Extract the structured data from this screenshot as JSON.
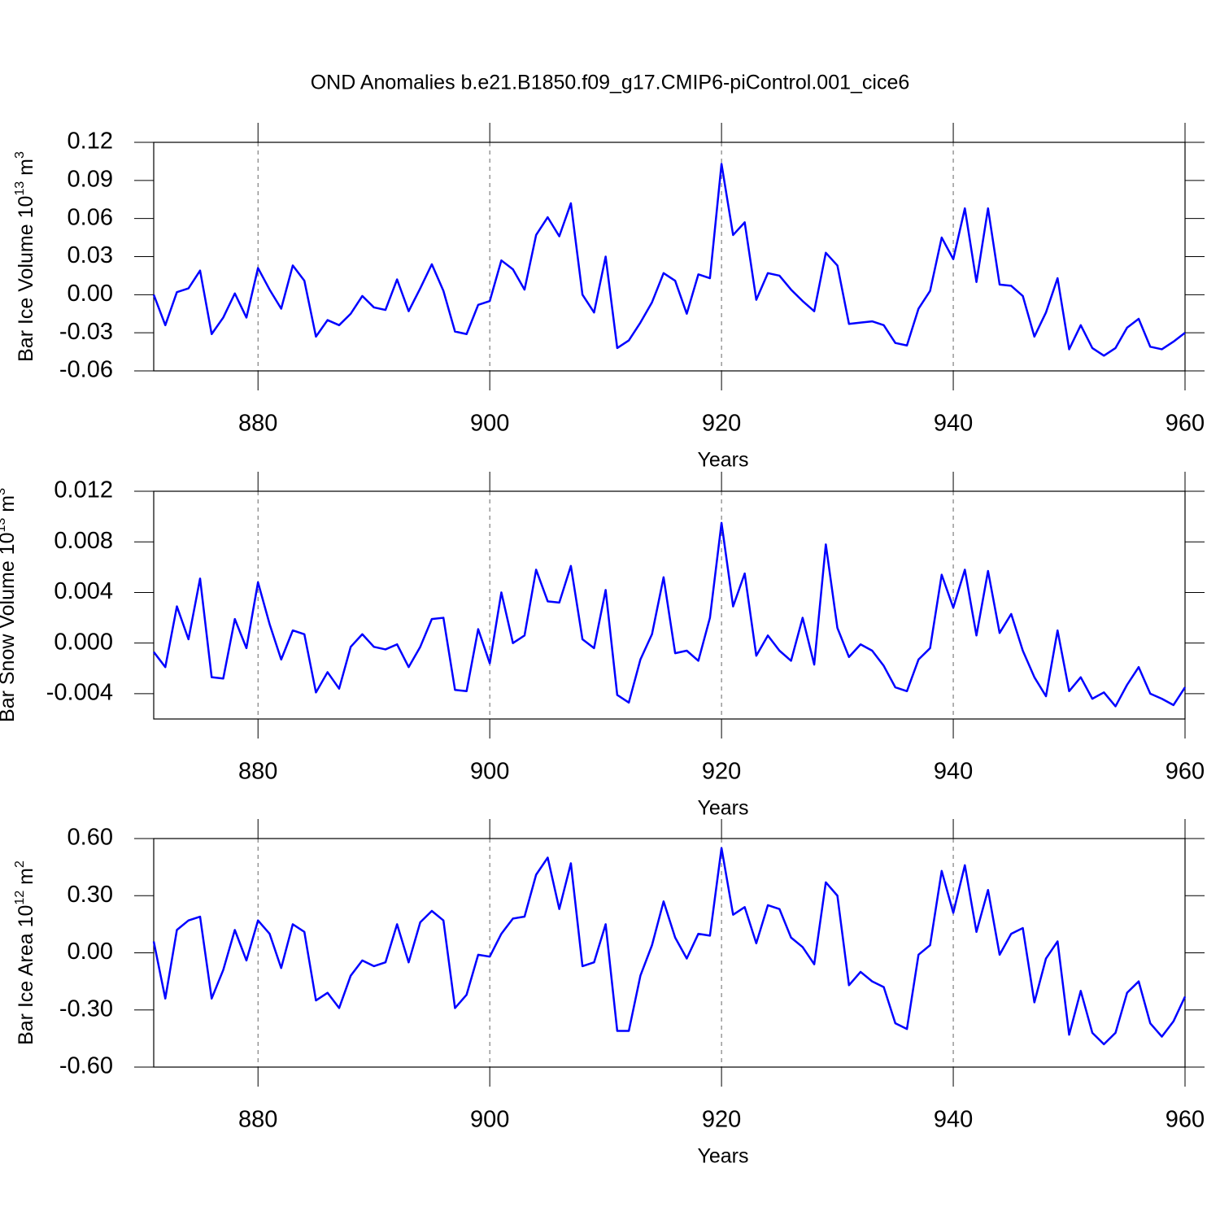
{
  "title": "OND Anomalies b.e21.B1850.f09_g17.CMIP6-piControl.001_cice6",
  "chart_data": [
    {
      "type": "line",
      "color": "#0000ff",
      "grid": "x",
      "xlabel": "Years",
      "ylabel": {
        "base": "Bar Ice Volume 10",
        "power": "13",
        "unit": " m",
        "unit_power": "3"
      },
      "xlim": [
        871,
        960
      ],
      "xticks": [
        880,
        900,
        920,
        940,
        960
      ],
      "ylim": [
        -0.06,
        0.12
      ],
      "yticks": [
        -0.06,
        -0.03,
        {
          "value": 0,
          "label": "0.00"
        },
        0.03,
        0.06,
        0.09,
        0.12
      ],
      "x": [
        871,
        872,
        873,
        874,
        875,
        876,
        877,
        878,
        879,
        880,
        881,
        882,
        883,
        884,
        885,
        886,
        887,
        888,
        889,
        890,
        891,
        892,
        893,
        894,
        895,
        896,
        897,
        898,
        899,
        900,
        901,
        902,
        903,
        904,
        905,
        906,
        907,
        908,
        909,
        910,
        911,
        912,
        913,
        914,
        915,
        916,
        917,
        918,
        919,
        920,
        921,
        922,
        923,
        924,
        925,
        926,
        927,
        928,
        929,
        930,
        931,
        932,
        933,
        934,
        935,
        936,
        937,
        938,
        939,
        940,
        941,
        942,
        943,
        944,
        945,
        946,
        947,
        948,
        949,
        950,
        951,
        952,
        953,
        954,
        955,
        956,
        957,
        958,
        959,
        960
      ],
      "values": [
        0.0,
        -0.024,
        0.002,
        0.005,
        0.019,
        -0.031,
        -0.018,
        0.001,
        -0.018,
        0.021,
        0.004,
        -0.011,
        0.023,
        0.011,
        -0.033,
        -0.02,
        -0.024,
        -0.015,
        -0.001,
        -0.01,
        -0.012,
        0.012,
        -0.013,
        0.005,
        0.024,
        0.003,
        -0.029,
        -0.031,
        -0.008,
        -0.005,
        0.027,
        0.02,
        0.004,
        0.047,
        0.061,
        0.046,
        0.072,
        0.0,
        -0.014,
        0.03,
        -0.042,
        -0.036,
        -0.022,
        -0.006,
        0.017,
        0.011,
        -0.015,
        0.016,
        0.013,
        0.103,
        0.047,
        0.057,
        -0.004,
        0.017,
        0.015,
        0.004,
        -0.005,
        -0.013,
        0.033,
        0.023,
        -0.023,
        -0.022,
        -0.021,
        -0.024,
        -0.038,
        -0.04,
        -0.011,
        0.003,
        0.045,
        0.028,
        0.068,
        0.01,
        0.068,
        0.008,
        0.007,
        -0.001,
        -0.033,
        -0.014,
        0.013,
        -0.043,
        -0.024,
        -0.042,
        -0.048,
        -0.042,
        -0.026,
        -0.019,
        -0.041,
        -0.043,
        -0.037,
        -0.03
      ]
    },
    {
      "type": "line",
      "color": "#0000ff",
      "grid": "x",
      "xlabel": "Years",
      "ylabel": {
        "base": "Bar Snow Volume 10",
        "power": "13",
        "unit": " m",
        "unit_power": "3"
      },
      "xlim": [
        871,
        960
      ],
      "xticks": [
        880,
        900,
        920,
        940,
        960
      ],
      "ylim": [
        -0.006,
        0.012
      ],
      "yticks": [
        -0.004,
        {
          "value": 0,
          "label": "0.000"
        },
        0.004,
        0.008,
        0.012
      ],
      "x": [
        871,
        872,
        873,
        874,
        875,
        876,
        877,
        878,
        879,
        880,
        881,
        882,
        883,
        884,
        885,
        886,
        887,
        888,
        889,
        890,
        891,
        892,
        893,
        894,
        895,
        896,
        897,
        898,
        899,
        900,
        901,
        902,
        903,
        904,
        905,
        906,
        907,
        908,
        909,
        910,
        911,
        912,
        913,
        914,
        915,
        916,
        917,
        918,
        919,
        920,
        921,
        922,
        923,
        924,
        925,
        926,
        927,
        928,
        929,
        930,
        931,
        932,
        933,
        934,
        935,
        936,
        937,
        938,
        939,
        940,
        941,
        942,
        943,
        944,
        945,
        946,
        947,
        948,
        949,
        950,
        951,
        952,
        953,
        954,
        955,
        956,
        957,
        958,
        959,
        960
      ],
      "values": [
        -0.0007,
        -0.0019,
        0.0029,
        0.0003,
        0.0051,
        -0.0027,
        -0.0028,
        0.0019,
        -0.0004,
        0.0048,
        0.0015,
        -0.0013,
        0.001,
        0.0007,
        -0.0039,
        -0.0023,
        -0.0036,
        -0.0003,
        0.0007,
        -0.0003,
        -0.0005,
        -0.0001,
        -0.0019,
        -0.0003,
        0.0019,
        0.002,
        -0.0037,
        -0.0038,
        0.0011,
        -0.0016,
        0.004,
        0.0,
        0.0006,
        0.0058,
        0.0033,
        0.0032,
        0.0061,
        0.0003,
        -0.0004,
        0.0042,
        -0.0041,
        -0.0047,
        -0.0013,
        0.0007,
        0.0052,
        -0.0008,
        -0.0006,
        -0.0014,
        0.002,
        0.0095,
        0.0029,
        0.0055,
        -0.001,
        0.0006,
        -0.0006,
        -0.0014,
        0.002,
        -0.0017,
        0.0078,
        0.0012,
        -0.0011,
        -0.0001,
        -0.0006,
        -0.0018,
        -0.0035,
        -0.0038,
        -0.0013,
        -0.0004,
        0.0054,
        0.0028,
        0.0058,
        0.0006,
        0.0057,
        0.0008,
        0.0023,
        -0.0006,
        -0.0027,
        -0.0042,
        0.001,
        -0.0038,
        -0.0027,
        -0.0044,
        -0.0039,
        -0.005,
        -0.0033,
        -0.0019,
        -0.004,
        -0.0044,
        -0.0049,
        -0.0035
      ]
    },
    {
      "type": "line",
      "color": "#0000ff",
      "grid": "x",
      "xlabel": "Years",
      "ylabel": {
        "base": "Bar Ice Area 10",
        "power": "12",
        "unit": " m",
        "unit_power": "2"
      },
      "xlim": [
        871,
        960
      ],
      "xticks": [
        880,
        900,
        920,
        940,
        960
      ],
      "ylim": [
        -0.6,
        0.6
      ],
      "yticks": [
        {
          "value": -0.6,
          "label": "-0.60"
        },
        {
          "value": -0.3,
          "label": "-0.30"
        },
        {
          "value": 0,
          "label": "0.00"
        },
        {
          "value": 0.3,
          "label": "0.30"
        },
        {
          "value": 0.6,
          "label": "0.60"
        }
      ],
      "x": [
        871,
        872,
        873,
        874,
        875,
        876,
        877,
        878,
        879,
        880,
        881,
        882,
        883,
        884,
        885,
        886,
        887,
        888,
        889,
        890,
        891,
        892,
        893,
        894,
        895,
        896,
        897,
        898,
        899,
        900,
        901,
        902,
        903,
        904,
        905,
        906,
        907,
        908,
        909,
        910,
        911,
        912,
        913,
        914,
        915,
        916,
        917,
        918,
        919,
        920,
        921,
        922,
        923,
        924,
        925,
        926,
        927,
        928,
        929,
        930,
        931,
        932,
        933,
        934,
        935,
        936,
        937,
        938,
        939,
        940,
        941,
        942,
        943,
        944,
        945,
        946,
        947,
        948,
        949,
        950,
        951,
        952,
        953,
        954,
        955,
        956,
        957,
        958,
        959,
        960
      ],
      "values": [
        0.06,
        -0.24,
        0.12,
        0.17,
        0.19,
        -0.24,
        -0.09,
        0.12,
        -0.04,
        0.17,
        0.1,
        -0.08,
        0.15,
        0.11,
        -0.25,
        -0.21,
        -0.29,
        -0.12,
        -0.04,
        -0.07,
        -0.05,
        0.15,
        -0.05,
        0.16,
        0.22,
        0.17,
        -0.29,
        -0.22,
        -0.01,
        -0.02,
        0.1,
        0.18,
        0.19,
        0.41,
        0.5,
        0.23,
        0.47,
        -0.07,
        -0.05,
        0.15,
        -0.41,
        -0.41,
        -0.12,
        0.04,
        0.27,
        0.08,
        -0.03,
        0.1,
        0.09,
        0.55,
        0.2,
        0.24,
        0.05,
        0.25,
        0.23,
        0.08,
        0.03,
        -0.06,
        0.37,
        0.3,
        -0.17,
        -0.1,
        -0.15,
        -0.18,
        -0.37,
        -0.4,
        -0.01,
        0.04,
        0.43,
        0.21,
        0.46,
        0.11,
        0.33,
        -0.01,
        0.1,
        0.13,
        -0.26,
        -0.03,
        0.06,
        -0.43,
        -0.2,
        -0.42,
        -0.48,
        -0.42,
        -0.21,
        -0.15,
        -0.37,
        -0.44,
        -0.36,
        -0.23
      ]
    }
  ]
}
